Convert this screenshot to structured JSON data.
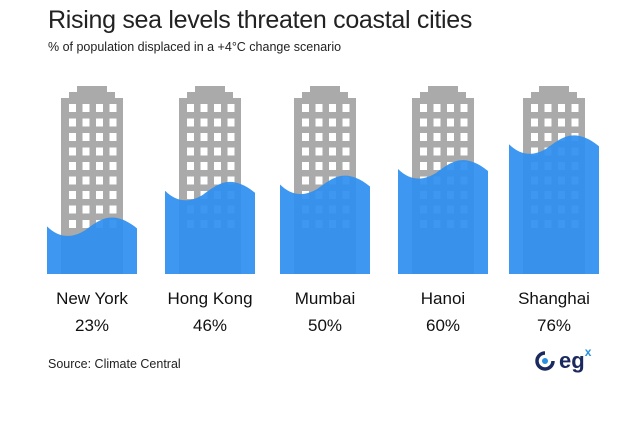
{
  "title": "Rising sea levels threaten coastal cities",
  "subtitle": "% of population displaced in a +4°C change scenario",
  "source": "Source: Climate Central",
  "logo": "eg",
  "logo_sup": "x",
  "colors": {
    "building": "#aaaaaa",
    "water": "#2f8ff0",
    "logo": "#1b2a5e",
    "logo_accent": "#2a8fe0"
  },
  "chart_data": {
    "type": "pictogram",
    "title": "Rising sea levels threaten coastal cities",
    "subtitle": "% of population displaced in a +4°C change scenario",
    "categories": [
      "New York",
      "Hong Kong",
      "Mumbai",
      "Hanoi",
      "Shanghai"
    ],
    "values": [
      23,
      46,
      50,
      60,
      76
    ],
    "labels": [
      "23%",
      "46%",
      "50%",
      "60%",
      "76%"
    ]
  }
}
